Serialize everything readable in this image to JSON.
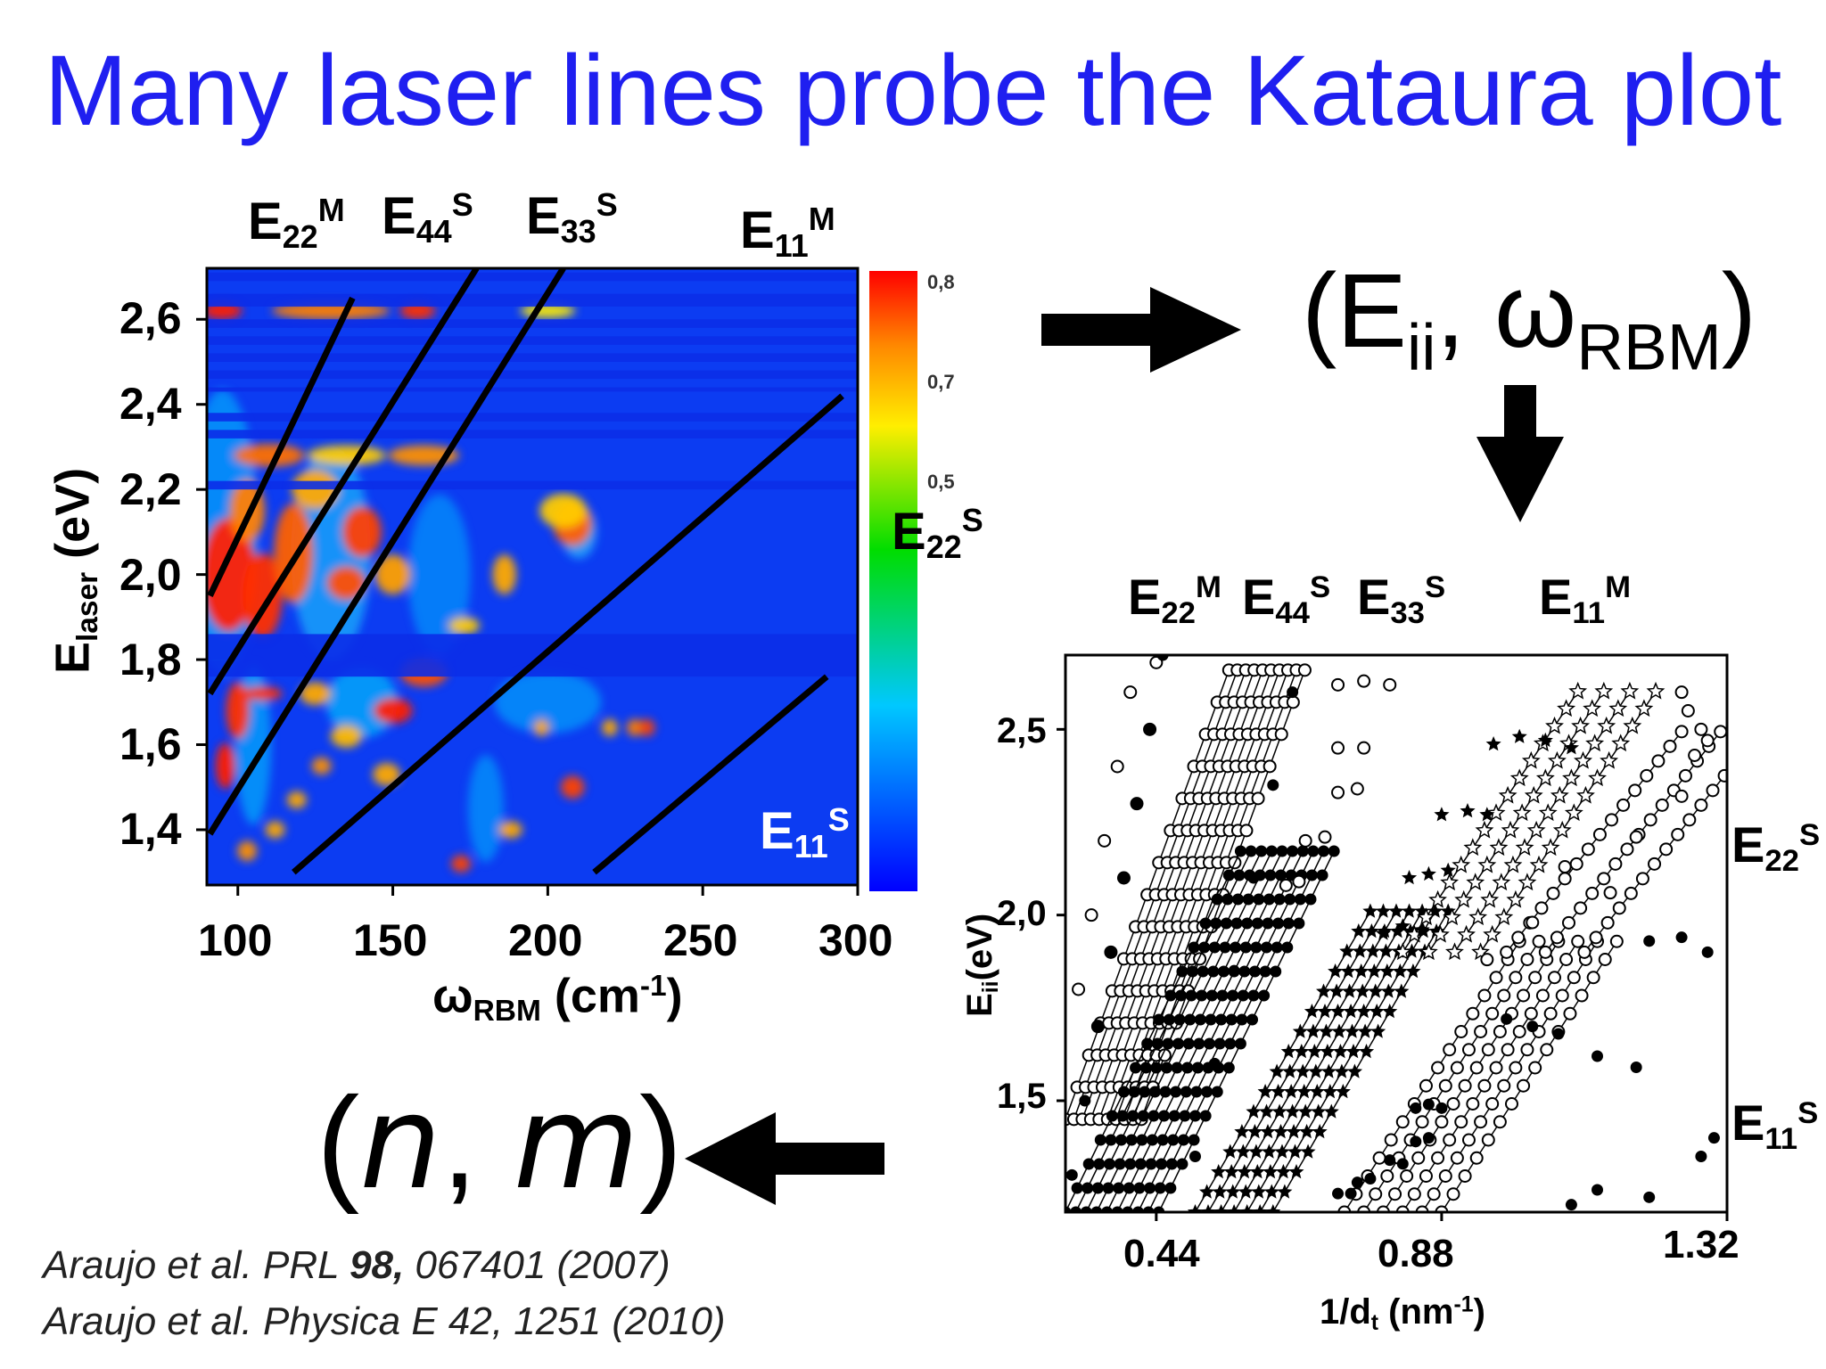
{
  "title": "Many laser lines probe the Kataura plot",
  "arrow_label_pair": "(E_ii, ω_RBM)",
  "nm_label": {
    "open": "(",
    "n": "n",
    "comma": ", ",
    "m": "m",
    "close": ")"
  },
  "references": {
    "ref1_prefix": "Araujo et al. PRL ",
    "ref1_bold": "98,",
    "ref1_suffix": " 067401 (2007)",
    "ref2": "Araujo et al. Physica E 42, 1251 (2010)"
  },
  "arrows": [
    "arrow-right",
    "arrow-down",
    "arrow-left"
  ],
  "chart_data": [
    {
      "type": "heatmap",
      "title": "",
      "xlabel": "ω_RBM (cm-1)",
      "ylabel": "E_laser (eV)",
      "xlim": [
        90,
        300
      ],
      "ylim": [
        1.27,
        2.72
      ],
      "x_ticks": [
        "100",
        "150",
        "200",
        "250",
        "300"
      ],
      "y_ticks": [
        "1,4",
        "1,6",
        "1,8",
        "2,0",
        "2,2",
        "2,4",
        "2,6"
      ],
      "colorbar": {
        "ticks": [
          "0,8",
          "0,7",
          "0,5"
        ],
        "colors": [
          "#ff0000",
          "#ffa000",
          "#00dd00",
          "#00ffff",
          "#0000ff"
        ]
      },
      "transition_lines": [
        {
          "label": "E22M",
          "x": [
            91,
            137
          ],
          "y": [
            1.95,
            2.65
          ]
        },
        {
          "label": "E44S",
          "x": [
            91,
            177
          ],
          "y": [
            1.72,
            2.72
          ]
        },
        {
          "label": "E33S",
          "x": [
            91,
            205
          ],
          "y": [
            1.39,
            2.72
          ]
        },
        {
          "label": "E22S",
          "x": [
            118,
            295
          ],
          "y": [
            1.3,
            2.42
          ]
        },
        {
          "label": "E11S",
          "x": [
            215,
            290
          ],
          "y": [
            1.3,
            1.76
          ]
        }
      ],
      "top_labels": [
        {
          "base": "E",
          "sub": "22",
          "sup": "M"
        },
        {
          "base": "E",
          "sub": "44",
          "sup": "S"
        },
        {
          "base": "E",
          "sub": "33",
          "sup": "S"
        },
        {
          "base": "E",
          "sub": "11",
          "sup": "M"
        }
      ],
      "inner_labels": [
        {
          "base": "E",
          "sub": "22",
          "sup": "S"
        },
        {
          "base": "E",
          "sub": "11",
          "sup": "S"
        }
      ]
    },
    {
      "type": "scatter",
      "title": "",
      "xlabel": "1/dt (nm-1)",
      "ylabel": "Eii (eV)",
      "xlim": [
        0.3,
        1.32
      ],
      "ylim": [
        1.2,
        2.7
      ],
      "x_ticks": [
        "0.44",
        "0.88",
        "1.32"
      ],
      "y_ticks": [
        "1,5",
        "2,0",
        "2,5"
      ],
      "top_labels": [
        {
          "base": "E",
          "sub": "22",
          "sup": "M"
        },
        {
          "base": "E",
          "sub": "44",
          "sup": "S"
        },
        {
          "base": "E",
          "sub": "33",
          "sup": "S"
        },
        {
          "base": "E",
          "sub": "11",
          "sup": "M"
        }
      ],
      "right_labels": [
        {
          "base": "E",
          "sub": "22",
          "sup": "S"
        },
        {
          "base": "E",
          "sub": "11",
          "sup": "S"
        }
      ],
      "series": [
        {
          "name": "E11S",
          "marker": "filled-circle",
          "points": [
            [
              1.08,
              1.22
            ],
            [
              1.12,
              1.26
            ],
            [
              1.2,
              1.24
            ],
            [
              1.28,
              1.35
            ],
            [
              1.3,
              1.4
            ]
          ]
        },
        {
          "name": "E22S-open",
          "marker": "open-circle",
          "points": [
            [
              0.95,
              1.88
            ],
            [
              1.02,
              1.98
            ],
            [
              1.07,
              2.13
            ],
            [
              1.14,
              2.06
            ],
            [
              1.18,
              2.21
            ],
            [
              1.25,
              2.32
            ],
            [
              1.27,
              2.43
            ],
            [
              1.29,
              2.47
            ],
            [
              1.28,
              2.5
            ],
            [
              1.26,
              2.55
            ],
            [
              1.25,
              2.6
            ]
          ]
        },
        {
          "name": "E22S-filled",
          "marker": "filled-circle",
          "points": [
            [
              0.98,
              1.72
            ],
            [
              1.02,
              1.7
            ],
            [
              1.06,
              1.68
            ],
            [
              1.12,
              1.62
            ],
            [
              1.18,
              1.59
            ],
            [
              1.25,
              1.94
            ],
            [
              1.29,
              1.9
            ],
            [
              1.2,
              1.93
            ]
          ]
        },
        {
          "name": "E33S-open",
          "marker": "open-circle",
          "points": [
            [
              0.72,
              2.62
            ],
            [
              0.76,
              2.63
            ],
            [
              0.8,
              2.62
            ],
            [
              0.72,
              2.45
            ],
            [
              0.76,
              2.45
            ],
            [
              0.72,
              2.33
            ],
            [
              0.75,
              2.34
            ],
            [
              0.67,
              2.2
            ],
            [
              0.7,
              2.21
            ],
            [
              0.64,
              2.08
            ],
            [
              0.66,
              2.09
            ]
          ]
        },
        {
          "name": "E33S-filled",
          "marker": "filled-circle",
          "points": [
            [
              0.84,
              1.48
            ],
            [
              0.86,
              1.49
            ],
            [
              0.88,
              1.48
            ],
            [
              0.84,
              1.39
            ],
            [
              0.86,
              1.4
            ],
            [
              0.8,
              1.34
            ],
            [
              0.82,
              1.33
            ],
            [
              0.75,
              1.28
            ],
            [
              0.77,
              1.29
            ],
            [
              0.72,
              1.25
            ],
            [
              0.74,
              1.25
            ]
          ]
        },
        {
          "name": "E44S-stars",
          "marker": "filled-star",
          "points": [
            [
              0.96,
              2.46
            ],
            [
              1.0,
              2.48
            ],
            [
              1.04,
              2.47
            ],
            [
              1.08,
              2.45
            ],
            [
              0.88,
              2.27
            ],
            [
              0.92,
              2.28
            ],
            [
              0.95,
              2.27
            ],
            [
              0.83,
              2.1
            ],
            [
              0.86,
              2.11
            ],
            [
              0.89,
              2.12
            ],
            [
              0.79,
              1.95
            ],
            [
              0.82,
              1.97
            ],
            [
              0.85,
              1.96
            ]
          ]
        },
        {
          "name": "E22M-open",
          "marker": "open-circle",
          "points": [
            [
              0.32,
              1.8
            ],
            [
              0.34,
              2.0
            ],
            [
              0.36,
              2.2
            ],
            [
              0.38,
              2.4
            ],
            [
              0.4,
              2.6
            ],
            [
              0.44,
              2.68
            ],
            [
              0.35,
              1.7
            ],
            [
              0.37,
              1.9
            ],
            [
              0.39,
              2.1
            ],
            [
              0.41,
              2.3
            ],
            [
              0.43,
              2.5
            ]
          ]
        },
        {
          "name": "E22M-filled",
          "marker": "filled-circle",
          "points": [
            [
              0.31,
              1.3
            ],
            [
              0.33,
              1.5
            ],
            [
              0.35,
              1.7
            ],
            [
              0.37,
              1.9
            ],
            [
              0.39,
              2.1
            ],
            [
              0.41,
              2.3
            ],
            [
              0.43,
              2.5
            ],
            [
              0.45,
              2.7
            ],
            [
              0.5,
              1.35
            ],
            [
              0.53,
              1.6
            ],
            [
              0.56,
              1.85
            ],
            [
              0.59,
              2.1
            ],
            [
              0.62,
              2.35
            ],
            [
              0.65,
              2.6
            ]
          ]
        }
      ]
    }
  ]
}
